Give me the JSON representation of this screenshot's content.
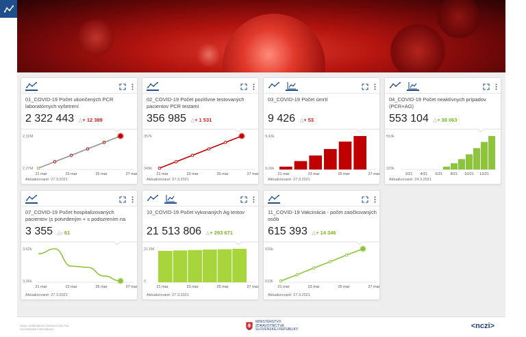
{
  "colors": {
    "brand": "#1f4e8c",
    "red": "#cc1f1f",
    "green": "#8cc43c",
    "up": "#cc1f1f",
    "upGreen": "#7ab51d"
  },
  "header": {
    "logo_icon": "dashboard-graph-icon"
  },
  "cards": [
    {
      "id": "c1",
      "title": "01_COVID-19 Počet ukončených PCR laboratórnych vyšetrení",
      "value": "2 322 443",
      "delta_sign": "△",
      "delta": "+ 12 389",
      "delta_color": "red",
      "updated": "Aktualizované: 27.3.2021",
      "tab_active": 0,
      "chart_data": {
        "type": "line",
        "color": "#c00000",
        "ymax_label": "2,32M",
        "ymin_label": "2,27M",
        "x_labels": [
          "21 mar",
          "23 mar",
          "25 mar",
          "27 mar"
        ],
        "values": [
          2.27,
          2.28,
          2.29,
          2.3,
          2.31,
          2.32
        ]
      }
    },
    {
      "id": "c2",
      "title": "02_COVID-19 Počet pozitívne testovaných pacientov PCR testami",
      "value": "356 985",
      "delta_sign": "△",
      "delta": "+ 1 531",
      "delta_color": "red",
      "updated": "Aktualizované: 27.3.2021",
      "tab_active": 0,
      "chart_data": {
        "type": "line",
        "color": "#c00000",
        "ymax_label": "357k",
        "ymin_label": "349k",
        "x_labels": [
          "21 mar",
          "23 mar",
          "25 mar",
          "27 mar"
        ],
        "values": [
          349,
          350.6,
          352.2,
          353.8,
          355.4,
          357
        ]
      }
    },
    {
      "id": "c3",
      "title": "03_COVID-19 Počet úmrtí",
      "value": "9 426",
      "delta_sign": "△",
      "delta": "+ 53",
      "delta_color": "red",
      "updated": "Aktualizované: 27.3.2021",
      "tab_active": 1,
      "chart_data": {
        "type": "bar",
        "color": "#c00000",
        "ymax_label": "9,43k",
        "ymin_label": "9,09k",
        "x_labels": [
          "21 mar",
          "23 mar",
          "25 mar",
          "27 mar"
        ],
        "values": [
          9.1,
          9.16,
          9.22,
          9.29,
          9.37,
          9.43
        ]
      }
    },
    {
      "id": "c4",
      "title": "04_COVID-19 Počet neaktívnych prípadov (PCR+AG)",
      "value": "553 104",
      "delta_sign": "△",
      "delta": "+ 38 063",
      "delta_color": "green",
      "updated": "Aktualizované: 24.3.2021",
      "tab_active": 1,
      "chart_data": {
        "type": "bar",
        "color": "#8cc43c",
        "ymax_label": "553k",
        "ymin_label": "323k",
        "x_labels": [
          "2/21",
          "4/21",
          "6/21",
          "8/21",
          "10/21",
          "12/21"
        ],
        "values": [
          330,
          355,
          385,
          420,
          465,
          510,
          553
        ]
      }
    },
    {
      "id": "c7",
      "title": "07_COVID-19 Počet hospitalizovaných pacientov (s potvrdeným + s podozrením na COVID-19)",
      "value": "3 355",
      "delta_sign": "△",
      "delta": "- 61",
      "delta_color": "green",
      "updated": "Aktualizované: 27.3.2021",
      "tab_active": 0,
      "chart_data": {
        "type": "line",
        "color": "#8cc43c",
        "ymax_label": "3,62k",
        "ymin_label": "3,36k",
        "x_labels": [
          "21 mar",
          "23 mar",
          "25 mar",
          "27 mar"
        ],
        "values": [
          3.58,
          3.62,
          3.48,
          3.47,
          3.4,
          3.36
        ]
      }
    },
    {
      "id": "c10",
      "title": "10_COVID-19 Počet vykonaných Ag testov",
      "value": "21 513 806",
      "delta_sign": "△",
      "delta": "+ 293 671",
      "delta_color": "green",
      "updated": "Aktualizované: 27.3.2021",
      "tab_active": 1,
      "chart_data": {
        "type": "bar",
        "color": "#a8d43c",
        "ymax_label": "21,5M",
        "ymin_label": "0",
        "x_labels": [
          "21 mar",
          "23 mar",
          "25 mar",
          "27 mar"
        ],
        "values": [
          20.1,
          20.4,
          20.7,
          21.0,
          21.2,
          21.5
        ]
      }
    },
    {
      "id": "c11",
      "title": "11_COVID-19 Vakcinácia - počet zaočkovaných osôb",
      "value": "615 393",
      "delta_sign": "△",
      "delta": "+ 14 346",
      "delta_color": "green",
      "updated": "Aktualizované: 27.3.2021",
      "tab_active": 0,
      "chart_data": {
        "type": "line",
        "color": "#8cc43c",
        "ymax_label": "615k",
        "ymin_label": "533k",
        "x_labels": [
          "21 mar",
          "23 mar",
          "25 mar",
          "27 mar"
        ],
        "values": [
          533,
          549,
          566,
          582,
          599,
          615
        ]
      }
    }
  ],
  "footer": {
    "left_line1": "ÚRAD VEREJNÉHO ZDRAVOTNÍCTVA",
    "left_line2": "SLOVENSKEJ REPUBLIKY",
    "ministry_line1": "MINISTERSTVO",
    "ministry_line2": "ZDRAVOTNÍCTVA",
    "ministry_line3": "SLOVENSKEJ REPUBLIKY",
    "right_logo": "<nczi>"
  }
}
